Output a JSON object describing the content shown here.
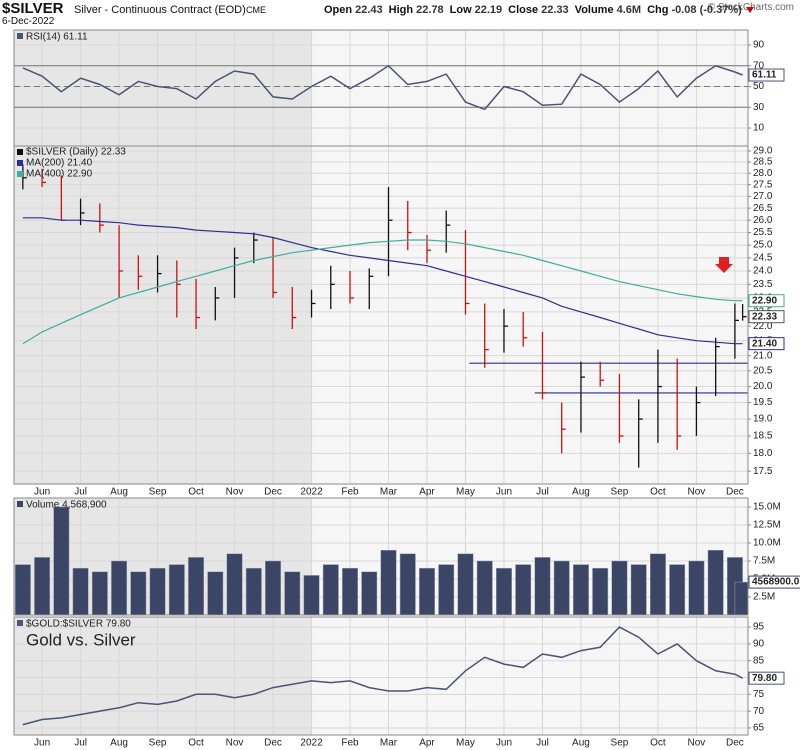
{
  "header": {
    "symbol": "$SILVER",
    "name": "Silver - Continuous Contract (EOD)",
    "exchange": "CME",
    "date": "6-Dec-2022",
    "credit": "© StockCharts.com",
    "quote": [
      {
        "label": "Open",
        "value": "22.43"
      },
      {
        "label": "High",
        "value": "22.78"
      },
      {
        "label": "Low",
        "value": "22.19"
      },
      {
        "label": "Close",
        "value": "22.33"
      },
      {
        "label": "Volume",
        "value": "4.6M"
      },
      {
        "label": "Chg",
        "value": "-0.08 (-0.37%)"
      }
    ]
  },
  "chart_data": [
    {
      "type": "line",
      "title": "RSI(14) 61.11",
      "color": "#4a5573",
      "last_label": "61.11",
      "x": [
        -0.5,
        0,
        0.5,
        1,
        1.5,
        2,
        2.5,
        3,
        3.5,
        4,
        4.5,
        5,
        5.5,
        6,
        6.5,
        7,
        7.5,
        8,
        8.5,
        9,
        9.5,
        10,
        10.5,
        11,
        11.5,
        12,
        12.5,
        13,
        13.5,
        14,
        14.5,
        15,
        15.5,
        16,
        16.5,
        17,
        17.5,
        18,
        18.2
      ],
      "xlim": [
        -0.73,
        18.34
      ],
      "xticks": [
        {
          "value": 0,
          "label": "Jun"
        },
        {
          "value": 1,
          "label": "Jul"
        },
        {
          "value": 2,
          "label": "Aug"
        },
        {
          "value": 3,
          "label": "Sep"
        },
        {
          "value": 4,
          "label": "Oct"
        },
        {
          "value": 5,
          "label": "Nov"
        },
        {
          "value": 6,
          "label": "Dec"
        },
        {
          "value": 7,
          "label": "2022"
        },
        {
          "value": 8,
          "label": "Feb"
        },
        {
          "value": 9,
          "label": "Mar"
        },
        {
          "value": 10,
          "label": "Apr"
        },
        {
          "value": 11,
          "label": "May"
        },
        {
          "value": 12,
          "label": "Jun"
        },
        {
          "value": 13,
          "label": "Jul"
        },
        {
          "value": 14,
          "label": "Aug"
        },
        {
          "value": 15,
          "label": "Sep"
        },
        {
          "value": 16,
          "label": "Oct"
        },
        {
          "value": 17,
          "label": "Nov"
        },
        {
          "value": 18,
          "label": "Dec"
        }
      ],
      "values": [
        68,
        60,
        45,
        58,
        52,
        42,
        55,
        50,
        48,
        38,
        55,
        65,
        62,
        40,
        38,
        50,
        60,
        48,
        58,
        70,
        52,
        55,
        62,
        35,
        28,
        50,
        45,
        32,
        33,
        62,
        52,
        35,
        48,
        65,
        40,
        58,
        70,
        64,
        61.11
      ],
      "ylim": [
        -7.3,
        104.5
      ],
      "yticks": [
        10,
        30,
        50,
        70,
        90
      ],
      "levels": [
        {
          "value": 70,
          "style": "solid"
        },
        {
          "value": 50,
          "style": "dashed"
        },
        {
          "value": 30,
          "style": "solid"
        }
      ]
    },
    {
      "type": "ohlc",
      "log": true,
      "x_axis_labels": true,
      "x": [
        -0.5,
        0,
        0.5,
        1,
        1.5,
        2,
        2.5,
        3,
        3.5,
        4,
        4.5,
        5,
        5.5,
        6,
        6.5,
        7,
        7.5,
        8,
        8.5,
        9,
        9.5,
        10,
        10.5,
        11,
        11.5,
        12,
        12.5,
        13,
        13.5,
        14,
        14.5,
        15,
        15.5,
        16,
        16.5,
        17,
        17.5,
        18,
        18.2
      ],
      "xlim": [
        -0.73,
        18.34
      ],
      "xticks": [
        {
          "value": 0,
          "label": "Jun"
        },
        {
          "value": 1,
          "label": "Jul"
        },
        {
          "value": 2,
          "label": "Aug"
        },
        {
          "value": 3,
          "label": "Sep"
        },
        {
          "value": 4,
          "label": "Oct"
        },
        {
          "value": 5,
          "label": "Nov"
        },
        {
          "value": 6,
          "label": "Dec"
        },
        {
          "value": 7,
          "label": "2022"
        },
        {
          "value": 8,
          "label": "Feb"
        },
        {
          "value": 9,
          "label": "Mar"
        },
        {
          "value": 10,
          "label": "Apr"
        },
        {
          "value": 11,
          "label": "May"
        },
        {
          "value": 12,
          "label": "Jun"
        },
        {
          "value": 13,
          "label": "Jul"
        },
        {
          "value": 14,
          "label": "Aug"
        },
        {
          "value": 15,
          "label": "Sep"
        },
        {
          "value": 16,
          "label": "Oct"
        },
        {
          "value": 17,
          "label": "Nov"
        },
        {
          "value": 18,
          "label": "Dec"
        }
      ],
      "series": [
        {
          "name": "$SILVER (Daily) 22.33",
          "up_color": "#111111",
          "down_color": "#cc1111",
          "color": "#111111",
          "last_label": "22.33",
          "high": [
            28.4,
            28.2,
            27.9,
            26.9,
            26.7,
            25.8,
            24.6,
            24.6,
            24.4,
            23.7,
            23.4,
            24.9,
            25.5,
            25.3,
            23.4,
            23.3,
            24.2,
            24.0,
            24.1,
            27.4,
            26.8,
            25.4,
            26.4,
            25.6,
            22.8,
            22.6,
            22.5,
            21.8,
            19.5,
            20.8,
            20.8,
            20.4,
            19.6,
            21.2,
            20.9,
            20.0,
            21.6,
            22.8,
            22.78
          ],
          "low": [
            27.3,
            27.4,
            26.0,
            25.8,
            25.5,
            23.0,
            23.3,
            23.2,
            22.3,
            21.9,
            22.2,
            23.0,
            24.3,
            23.0,
            21.9,
            22.3,
            22.6,
            22.8,
            22.6,
            23.8,
            24.8,
            24.3,
            24.7,
            22.4,
            20.6,
            21.1,
            21.3,
            19.6,
            18.0,
            18.6,
            20.0,
            18.3,
            17.6,
            18.3,
            18.1,
            18.5,
            19.7,
            20.9,
            22.19
          ],
          "close": [
            27.8,
            27.6,
            26.0,
            26.3,
            25.8,
            24.0,
            23.8,
            23.9,
            23.5,
            22.3,
            23.0,
            24.5,
            25.2,
            23.2,
            22.3,
            22.8,
            23.5,
            23.0,
            23.8,
            26.0,
            25.5,
            24.8,
            25.8,
            22.8,
            21.2,
            22.0,
            21.6,
            19.8,
            18.7,
            20.3,
            20.2,
            18.5,
            19.0,
            20.0,
            18.5,
            19.5,
            21.3,
            22.2,
            22.33
          ]
        },
        {
          "name": "MA(200) 21.40",
          "color": "#2b2f8f",
          "last_label": "21.40",
          "values": [
            26.1,
            26.1,
            26.0,
            26.0,
            25.95,
            25.9,
            25.8,
            25.75,
            25.7,
            25.6,
            25.55,
            25.5,
            25.45,
            25.3,
            25.1,
            24.9,
            24.75,
            24.6,
            24.5,
            24.4,
            24.3,
            24.2,
            24.0,
            23.8,
            23.6,
            23.4,
            23.2,
            23.0,
            22.7,
            22.5,
            22.3,
            22.1,
            21.9,
            21.7,
            21.6,
            21.5,
            21.45,
            21.4,
            21.4
          ]
        },
        {
          "name": "MA(400) 22.90",
          "color": "#3fae9d",
          "last_label": "22.90",
          "values": [
            21.4,
            21.8,
            22.1,
            22.4,
            22.7,
            23.0,
            23.2,
            23.4,
            23.6,
            23.8,
            24.0,
            24.2,
            24.4,
            24.55,
            24.7,
            24.8,
            24.9,
            25.0,
            25.1,
            25.15,
            25.2,
            25.2,
            25.15,
            25.05,
            24.9,
            24.75,
            24.6,
            24.4,
            24.2,
            24.0,
            23.8,
            23.6,
            23.45,
            23.3,
            23.15,
            23.05,
            22.95,
            22.9,
            22.9
          ]
        }
      ],
      "hlines": [
        {
          "value": 20.75,
          "x0": 11.1,
          "color": "#2b2f8f"
        },
        {
          "value": 19.8,
          "x0": 12.8,
          "color": "#2b2f8f"
        }
      ],
      "ylim": [
        17.15,
        29.23
      ],
      "yticks": [
        17.5,
        {
          "value": 18,
          "label": "18.0"
        },
        18.5,
        {
          "value": 19,
          "label": "19.0"
        },
        19.5,
        {
          "value": 20,
          "label": "20.0"
        },
        20.5,
        {
          "value": 21,
          "label": "21.0"
        },
        21.5,
        {
          "value": 22,
          "label": "22.0"
        },
        22.5,
        {
          "value": 23,
          "label": "23.0"
        },
        23.5,
        {
          "value": 24,
          "label": "24.0"
        },
        24.5,
        {
          "value": 25,
          "label": "25.0"
        },
        25.5,
        {
          "value": 26,
          "label": "26.0"
        },
        26.5,
        {
          "value": 27,
          "label": "27.0"
        },
        27.5,
        {
          "value": 28,
          "label": "28.0"
        },
        28.5,
        {
          "value": 29,
          "label": "29.0"
        }
      ]
    },
    {
      "type": "bar",
      "title": "Volume 4,568,900",
      "color": "#3b4566",
      "last_label": "4568900.0",
      "x": [
        -0.5,
        0,
        0.5,
        1,
        1.5,
        2,
        2.5,
        3,
        3.5,
        4,
        4.5,
        5,
        5.5,
        6,
        6.5,
        7,
        7.5,
        8,
        8.5,
        9,
        9.5,
        10,
        10.5,
        11,
        11.5,
        12,
        12.5,
        13,
        13.5,
        14,
        14.5,
        15,
        15.5,
        16,
        16.5,
        17,
        17.5,
        18,
        18.2
      ],
      "xlim": [
        -0.73,
        18.34
      ],
      "xticks": [
        {
          "value": 0,
          "label": "Jun"
        },
        {
          "value": 1,
          "label": "Jul"
        },
        {
          "value": 2,
          "label": "Aug"
        },
        {
          "value": 3,
          "label": "Sep"
        },
        {
          "value": 4,
          "label": "Oct"
        },
        {
          "value": 5,
          "label": "Nov"
        },
        {
          "value": 6,
          "label": "Dec"
        },
        {
          "value": 7,
          "label": "2022"
        },
        {
          "value": 8,
          "label": "Feb"
        },
        {
          "value": 9,
          "label": "Mar"
        },
        {
          "value": 10,
          "label": "Apr"
        },
        {
          "value": 11,
          "label": "May"
        },
        {
          "value": 12,
          "label": "Jun"
        },
        {
          "value": 13,
          "label": "Jul"
        },
        {
          "value": 14,
          "label": "Aug"
        },
        {
          "value": 15,
          "label": "Sep"
        },
        {
          "value": 16,
          "label": "Oct"
        },
        {
          "value": 17,
          "label": "Nov"
        },
        {
          "value": 18,
          "label": "Dec"
        }
      ],
      "values": [
        7000000,
        8000000,
        15000000,
        6500000,
        6000000,
        7500000,
        6000000,
        6500000,
        7000000,
        8000000,
        6000000,
        8500000,
        6500000,
        7500000,
        6000000,
        5500000,
        7000000,
        6500000,
        6000000,
        9000000,
        8500000,
        6500000,
        7000000,
        8500000,
        7500000,
        6500000,
        7000000,
        8000000,
        7500000,
        7000000,
        6500000,
        7500000,
        7000000,
        8500000,
        7000000,
        7500000,
        9000000,
        8000000,
        4568900
      ],
      "ylim": [
        0,
        16250000
      ],
      "yticks": [
        {
          "value": 2500000,
          "label": "2.5M"
        },
        {
          "value": 5000000,
          "label": "5.0M"
        },
        {
          "value": 7500000,
          "label": "7.5M"
        },
        {
          "value": 10000000,
          "label": "10.0M"
        },
        {
          "value": 12500000,
          "label": "12.5M"
        },
        {
          "value": 15000000,
          "label": "15.0M"
        }
      ]
    },
    {
      "type": "line",
      "title": "$GOLD:$SILVER 79.80",
      "annotation": "Gold vs. Silver",
      "color": "#4a5573",
      "last_label": "79.80",
      "x_axis_labels": true,
      "x": [
        -0.5,
        0,
        0.5,
        1,
        1.5,
        2,
        2.5,
        3,
        3.5,
        4,
        4.5,
        5,
        5.5,
        6,
        6.5,
        7,
        7.5,
        8,
        8.5,
        9,
        9.5,
        10,
        10.5,
        11,
        11.5,
        12,
        12.5,
        13,
        13.5,
        14,
        14.5,
        15,
        15.5,
        16,
        16.5,
        17,
        17.5,
        18,
        18.2
      ],
      "xlim": [
        -0.73,
        18.34
      ],
      "xticks": [
        {
          "value": 0,
          "label": "Jun"
        },
        {
          "value": 1,
          "label": "Jul"
        },
        {
          "value": 2,
          "label": "Aug"
        },
        {
          "value": 3,
          "label": "Sep"
        },
        {
          "value": 4,
          "label": "Oct"
        },
        {
          "value": 5,
          "label": "Nov"
        },
        {
          "value": 6,
          "label": "Dec"
        },
        {
          "value": 7,
          "label": "2022"
        },
        {
          "value": 8,
          "label": "Feb"
        },
        {
          "value": 9,
          "label": "Mar"
        },
        {
          "value": 10,
          "label": "Apr"
        },
        {
          "value": 11,
          "label": "May"
        },
        {
          "value": 12,
          "label": "Jun"
        },
        {
          "value": 13,
          "label": "Jul"
        },
        {
          "value": 14,
          "label": "Aug"
        },
        {
          "value": 15,
          "label": "Sep"
        },
        {
          "value": 16,
          "label": "Oct"
        },
        {
          "value": 17,
          "label": "Nov"
        },
        {
          "value": 18,
          "label": "Dec"
        }
      ],
      "values": [
        66,
        67.5,
        68,
        69,
        70,
        71,
        72.5,
        72,
        73,
        75,
        75,
        74,
        75,
        77,
        78,
        79,
        78.5,
        79,
        77,
        76,
        76,
        77,
        76.5,
        82,
        86,
        84,
        83,
        87,
        86,
        88,
        89,
        95,
        92,
        87,
        90,
        85,
        82,
        81,
        79.8
      ],
      "ylim": [
        62.9,
        98
      ],
      "yticks": [
        65,
        70,
        75,
        80,
        85,
        90,
        95
      ]
    }
  ]
}
